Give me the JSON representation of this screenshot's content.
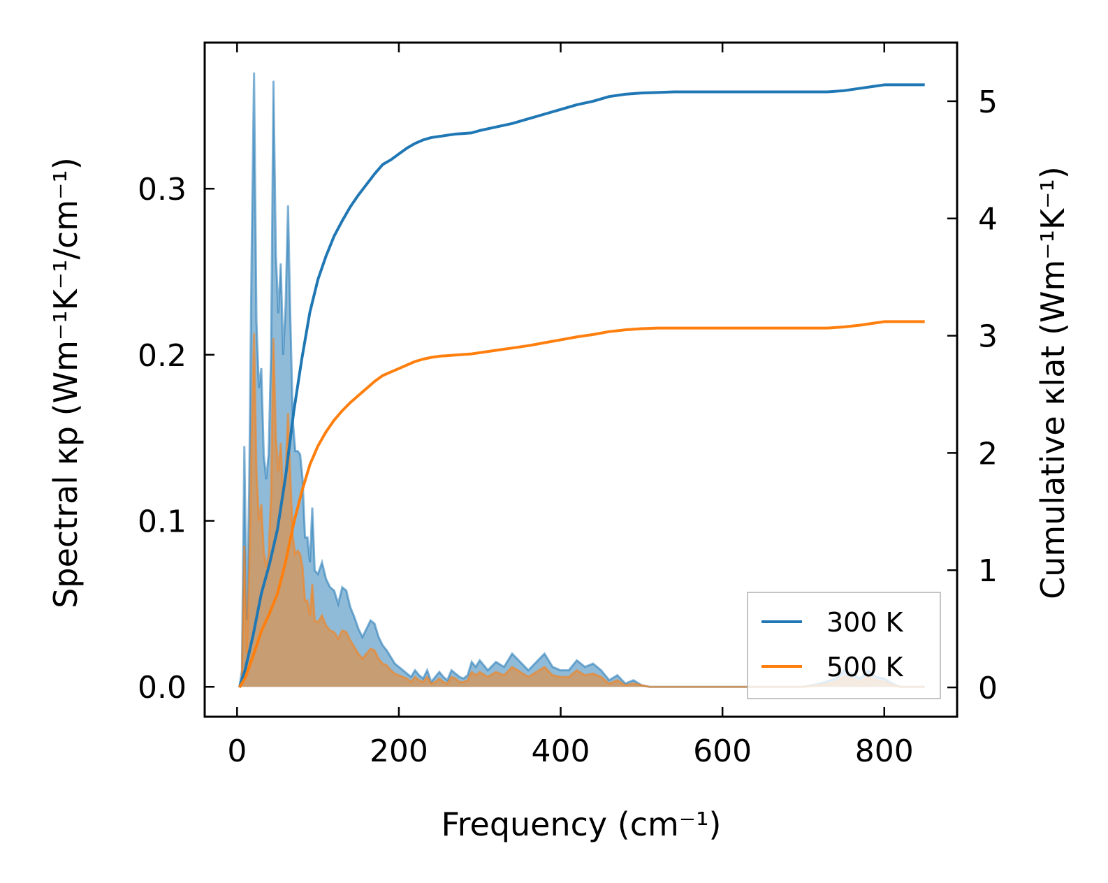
{
  "chart_data": {
    "type": "line",
    "xlabel": "Frequency (cm⁻¹)",
    "ylabel_left": "Spectral κp (Wm⁻¹K⁻¹/cm⁻¹)",
    "ylabel_right": "Cumulative κlat (Wm⁻¹K⁻¹)",
    "xlim": [
      -40,
      890
    ],
    "ylim_left": [
      -0.018,
      0.388
    ],
    "ylim_right": [
      -0.25,
      5.5
    ],
    "xticks": [
      0,
      200,
      400,
      600,
      800
    ],
    "xtick_labels": [
      "0",
      "200",
      "400",
      "600",
      "800"
    ],
    "yticks_left": [
      0.0,
      0.1,
      0.2,
      0.3
    ],
    "ytick_labels_left": [
      "0.0",
      "0.1",
      "0.2",
      "0.3"
    ],
    "yticks_right": [
      0,
      1,
      2,
      3,
      4,
      5
    ],
    "ytick_labels_right": [
      "0",
      "1",
      "2",
      "3",
      "4",
      "5"
    ],
    "legend_position": "lower-right",
    "colors": {
      "300K": "#1f77b4",
      "500K": "#ff7f0e"
    },
    "series": [
      {
        "name": "300 K",
        "color": "#1f77b4",
        "spectral": {
          "x": [
            3,
            6,
            9,
            12,
            15,
            18,
            21,
            24,
            27,
            30,
            33,
            36,
            39,
            42,
            45,
            48,
            51,
            54,
            57,
            60,
            63,
            66,
            69,
            72,
            75,
            78,
            81,
            84,
            87,
            90,
            93,
            96,
            100,
            105,
            110,
            115,
            120,
            125,
            130,
            135,
            140,
            145,
            150,
            155,
            160,
            165,
            170,
            175,
            180,
            185,
            190,
            195,
            200,
            205,
            210,
            215,
            220,
            225,
            230,
            235,
            240,
            245,
            250,
            255,
            260,
            265,
            270,
            275,
            280,
            285,
            290,
            295,
            300,
            310,
            320,
            330,
            340,
            350,
            360,
            370,
            380,
            390,
            400,
            410,
            420,
            430,
            440,
            450,
            460,
            470,
            480,
            490,
            500,
            510,
            520,
            530,
            540,
            560,
            600,
            650,
            700,
            720,
            740,
            750,
            760,
            770,
            780,
            790,
            800,
            810,
            820,
            850
          ],
          "values": [
            0.0,
            0.01,
            0.145,
            0.04,
            0.12,
            0.26,
            0.37,
            0.22,
            0.18,
            0.192,
            0.14,
            0.125,
            0.14,
            0.2,
            0.365,
            0.26,
            0.225,
            0.255,
            0.2,
            0.23,
            0.29,
            0.22,
            0.16,
            0.142,
            0.142,
            0.14,
            0.125,
            0.09,
            0.09,
            0.075,
            0.108,
            0.07,
            0.068,
            0.075,
            0.065,
            0.06,
            0.058,
            0.05,
            0.06,
            0.058,
            0.048,
            0.042,
            0.035,
            0.03,
            0.035,
            0.04,
            0.038,
            0.03,
            0.025,
            0.022,
            0.018,
            0.014,
            0.012,
            0.01,
            0.008,
            0.006,
            0.01,
            0.007,
            0.005,
            0.01,
            0.003,
            0.006,
            0.009,
            0.006,
            0.004,
            0.01,
            0.008,
            0.006,
            0.005,
            0.007,
            0.015,
            0.012,
            0.016,
            0.01,
            0.015,
            0.012,
            0.02,
            0.015,
            0.01,
            0.015,
            0.02,
            0.012,
            0.01,
            0.01,
            0.016,
            0.012,
            0.014,
            0.01,
            0.004,
            0.007,
            0.002,
            0.004,
            0.001,
            0.0,
            0.0,
            0.0,
            0.0,
            0.0,
            0.0,
            0.0,
            0.0,
            0.002,
            0.005,
            0.01,
            0.008,
            0.005,
            0.01,
            0.006,
            0.005,
            0.002,
            0.0,
            0.0
          ]
        },
        "cumulative": {
          "x": [
            3,
            10,
            20,
            30,
            40,
            50,
            60,
            70,
            80,
            90,
            100,
            110,
            120,
            130,
            140,
            150,
            160,
            170,
            180,
            190,
            200,
            210,
            220,
            230,
            240,
            250,
            260,
            270,
            280,
            290,
            300,
            320,
            340,
            360,
            380,
            400,
            420,
            440,
            460,
            480,
            500,
            520,
            540,
            560,
            600,
            650,
            700,
            730,
            750,
            770,
            790,
            800,
            820,
            850
          ],
          "values": [
            0.0,
            0.15,
            0.45,
            0.8,
            1.05,
            1.35,
            1.8,
            2.35,
            2.8,
            3.2,
            3.48,
            3.68,
            3.85,
            3.98,
            4.1,
            4.2,
            4.29,
            4.38,
            4.46,
            4.5,
            4.55,
            4.6,
            4.64,
            4.67,
            4.69,
            4.7,
            4.71,
            4.72,
            4.725,
            4.73,
            4.75,
            4.78,
            4.81,
            4.85,
            4.89,
            4.93,
            4.97,
            5.0,
            5.04,
            5.06,
            5.07,
            5.075,
            5.08,
            5.08,
            5.08,
            5.08,
            5.08,
            5.08,
            5.09,
            5.11,
            5.13,
            5.14,
            5.14,
            5.14
          ]
        }
      },
      {
        "name": "500 K",
        "color": "#ff7f0e",
        "spectral": {
          "x": [
            3,
            6,
            9,
            12,
            15,
            18,
            21,
            24,
            27,
            30,
            33,
            36,
            39,
            42,
            45,
            48,
            51,
            54,
            57,
            60,
            63,
            66,
            69,
            72,
            75,
            78,
            81,
            84,
            87,
            90,
            93,
            96,
            100,
            105,
            110,
            115,
            120,
            125,
            130,
            135,
            140,
            145,
            150,
            155,
            160,
            165,
            170,
            175,
            180,
            185,
            190,
            195,
            200,
            205,
            210,
            215,
            220,
            225,
            230,
            235,
            240,
            245,
            250,
            255,
            260,
            265,
            270,
            275,
            280,
            285,
            290,
            295,
            300,
            310,
            320,
            330,
            340,
            350,
            360,
            370,
            380,
            390,
            400,
            410,
            420,
            430,
            440,
            450,
            460,
            470,
            480,
            490,
            500,
            510,
            520,
            530,
            540,
            560,
            600,
            650,
            700,
            720,
            740,
            750,
            760,
            770,
            780,
            790,
            800,
            810,
            820,
            850
          ],
          "values": [
            0.0,
            0.005,
            0.085,
            0.02,
            0.07,
            0.15,
            0.213,
            0.13,
            0.1,
            0.11,
            0.082,
            0.072,
            0.08,
            0.115,
            0.21,
            0.15,
            0.13,
            0.147,
            0.115,
            0.13,
            0.165,
            0.125,
            0.09,
            0.08,
            0.082,
            0.08,
            0.072,
            0.052,
            0.052,
            0.043,
            0.062,
            0.04,
            0.039,
            0.043,
            0.037,
            0.034,
            0.033,
            0.029,
            0.034,
            0.033,
            0.028,
            0.024,
            0.02,
            0.017,
            0.02,
            0.023,
            0.022,
            0.017,
            0.014,
            0.013,
            0.01,
            0.008,
            0.007,
            0.006,
            0.005,
            0.003,
            0.006,
            0.004,
            0.003,
            0.006,
            0.002,
            0.003,
            0.005,
            0.003,
            0.002,
            0.006,
            0.005,
            0.003,
            0.003,
            0.004,
            0.009,
            0.007,
            0.009,
            0.006,
            0.009,
            0.007,
            0.012,
            0.009,
            0.006,
            0.009,
            0.012,
            0.007,
            0.006,
            0.006,
            0.01,
            0.007,
            0.008,
            0.006,
            0.002,
            0.004,
            0.001,
            0.002,
            0.001,
            0.0,
            0.0,
            0.0,
            0.0,
            0.0,
            0.0,
            0.0,
            0.0,
            0.001,
            0.003,
            0.006,
            0.005,
            0.003,
            0.006,
            0.004,
            0.003,
            0.001,
            0.0,
            0.0
          ]
        },
        "cumulative": {
          "x": [
            3,
            10,
            20,
            30,
            40,
            50,
            60,
            70,
            80,
            90,
            100,
            110,
            120,
            130,
            140,
            150,
            160,
            170,
            180,
            190,
            200,
            210,
            220,
            230,
            240,
            250,
            260,
            270,
            280,
            290,
            300,
            320,
            340,
            360,
            380,
            400,
            420,
            440,
            460,
            480,
            500,
            520,
            540,
            560,
            600,
            650,
            700,
            730,
            750,
            770,
            790,
            800,
            820,
            850
          ],
          "values": [
            0.0,
            0.08,
            0.27,
            0.48,
            0.63,
            0.8,
            1.07,
            1.4,
            1.67,
            1.9,
            2.06,
            2.18,
            2.28,
            2.36,
            2.43,
            2.49,
            2.55,
            2.61,
            2.66,
            2.69,
            2.72,
            2.75,
            2.78,
            2.8,
            2.815,
            2.825,
            2.83,
            2.835,
            2.84,
            2.845,
            2.855,
            2.875,
            2.895,
            2.915,
            2.94,
            2.965,
            2.99,
            3.01,
            3.035,
            3.05,
            3.06,
            3.065,
            3.065,
            3.065,
            3.065,
            3.065,
            3.065,
            3.065,
            3.075,
            3.09,
            3.11,
            3.12,
            3.12,
            3.12
          ]
        }
      }
    ]
  }
}
